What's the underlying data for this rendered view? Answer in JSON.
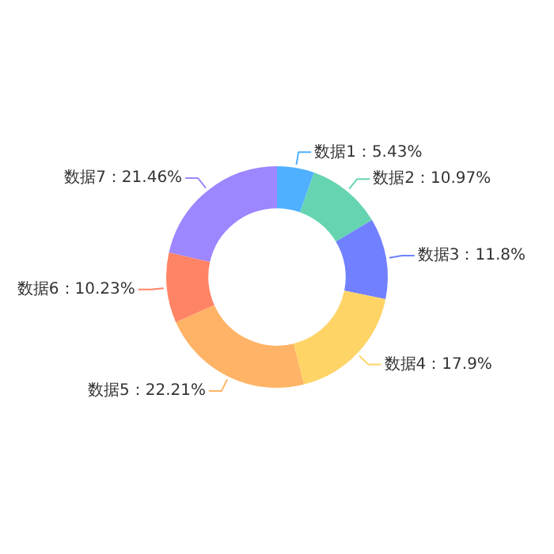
{
  "chart_data": {
    "type": "donut",
    "categories": [
      "数据1",
      "数据2",
      "数据3",
      "数据4",
      "数据5",
      "数据6",
      "数据7"
    ],
    "values": [
      5.43,
      10.97,
      11.8,
      17.9,
      22.21,
      10.23,
      21.46
    ],
    "colors": [
      "#4fb0ff",
      "#66d4b0",
      "#7080ff",
      "#ffd466",
      "#ffb366",
      "#ff8466",
      "#9d86ff"
    ],
    "value_labels": [
      "：5.43%",
      "：10.97%",
      "：11.8%",
      "：17.9%",
      "：22.21%",
      "：10.23%",
      "：21.46%"
    ]
  }
}
